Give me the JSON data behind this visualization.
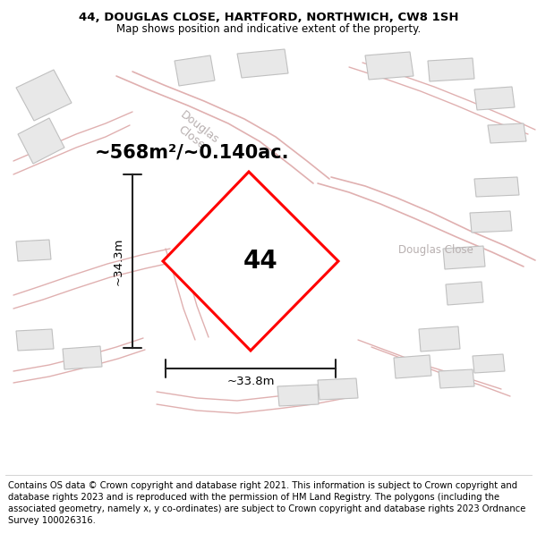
{
  "title_line1": "44, DOUGLAS CLOSE, HARTFORD, NORTHWICH, CW8 1SH",
  "title_line2": "Map shows position and indicative extent of the property.",
  "footer_text": "Contains OS data © Crown copyright and database right 2021. This information is subject to Crown copyright and database rights 2023 and is reproduced with the permission of HM Land Registry. The polygons (including the associated geometry, namely x, y co-ordinates) are subject to Crown copyright and database rights 2023 Ordnance Survey 100026316.",
  "area_label": "~568m²/~0.140ac.",
  "width_label": "~33.8m",
  "height_label": "~34.3m",
  "plot_number": "44",
  "map_bg": "#f2f0f0",
  "plot_edge_color": "#ff0000",
  "plot_fill": "#ffffff",
  "road_color": "#f0c8c8",
  "building_fill": "#e8e8e8",
  "building_edge": "#c8c8c8",
  "road_label_color": "#b8b0b0",
  "dim_line_color": "#222222",
  "title_fontsize": 9.5,
  "subtitle_fontsize": 8.5,
  "footer_fontsize": 7.2,
  "area_fontsize": 15,
  "dim_fontsize": 9.5,
  "plot_label_fontsize": 20
}
